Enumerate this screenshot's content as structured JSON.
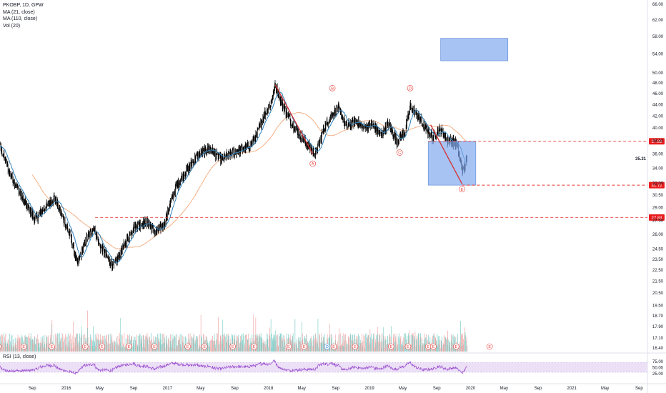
{
  "legend": {
    "symbol": "PKOBP, 1D, GPW",
    "ma21": "MA (21, close)",
    "ma110": "MA (110, close)",
    "vol": "Vol (20)"
  },
  "rsi_label": "RSI (13, close)",
  "colors": {
    "price_bars": "#000000",
    "ma21": "#2e7fb8",
    "ma110": "#f4a97c",
    "wave_line": "#d32f2f",
    "dashed_level": "#e53935",
    "box_fill": "#7ea7ee",
    "vol_up": "#7fcfc9",
    "vol_down": "#f1a8a8",
    "rsi_line": "#9b4fcf",
    "rsi_band": "#ece0f7",
    "marker": "#e53935",
    "marker_dividend": "#2e86de",
    "level_tag": "#e81c1c"
  },
  "chart_data": {
    "type": "ohlc",
    "price_axis": {
      "ticks": [
        "66.00",
        "62.00",
        "58.00",
        "54.00",
        "50.00",
        "48.00",
        "46.00",
        "44.00",
        "42.00",
        "40.00",
        "38.00",
        "36.00",
        "34.00",
        "32.00",
        "30.50",
        "29.00",
        "27.50",
        "26.00",
        "24.50",
        "23.50",
        "22.50",
        "21.50",
        "20.50",
        "19.50",
        "18.70",
        "17.90",
        "17.10",
        "16.40"
      ],
      "tick_values": [
        66,
        62,
        58,
        54,
        50,
        48,
        46,
        44,
        42,
        40,
        38,
        36,
        34,
        32,
        30.5,
        29,
        27.5,
        26,
        24.5,
        23.5,
        22.5,
        21.5,
        20.5,
        19.5,
        18.7,
        17.9,
        17.1,
        16.4
      ],
      "scale": "log"
    },
    "time_axis": {
      "labels": [
        "May",
        "Sep",
        "2016",
        "May",
        "Sep",
        "2017",
        "May",
        "Sep",
        "2018",
        "May",
        "Sep",
        "2019",
        "May",
        "Sep",
        "2020",
        "May",
        "Sep",
        "2021",
        "May",
        "Sep"
      ],
      "dates": [
        "2015-05",
        "2015-09",
        "2016-01",
        "2016-05",
        "2016-09",
        "2017-01",
        "2017-05",
        "2017-09",
        "2018-01",
        "2018-05",
        "2018-09",
        "2019-01",
        "2019-05",
        "2019-09",
        "2020-01",
        "2020-05",
        "2020-09",
        "2021-01",
        "2021-05",
        "2021-09"
      ]
    },
    "price_path": [
      [
        "2015-04-01",
        35.5
      ],
      [
        "2015-05-01",
        37.6
      ],
      [
        "2015-06-15",
        33.0
      ],
      [
        "2015-08-01",
        29.8
      ],
      [
        "2015-09-10",
        27.6
      ],
      [
        "2015-10-20",
        29.0
      ],
      [
        "2015-11-20",
        30.2
      ],
      [
        "2015-12-20",
        27.8
      ],
      [
        "2016-01-20",
        25.5
      ],
      [
        "2016-02-10",
        23.0
      ],
      [
        "2016-03-10",
        25.2
      ],
      [
        "2016-04-10",
        26.8
      ],
      [
        "2016-05-01",
        24.8
      ],
      [
        "2016-06-20",
        22.8
      ],
      [
        "2016-07-20",
        24.3
      ],
      [
        "2016-09-01",
        26.8
      ],
      [
        "2016-10-20",
        27.3
      ],
      [
        "2016-11-20",
        26.2
      ],
      [
        "2016-12-20",
        27.1
      ],
      [
        "2017-02-01",
        31.5
      ],
      [
        "2017-03-15",
        33.8
      ],
      [
        "2017-04-20",
        35.8
      ],
      [
        "2017-06-01",
        36.8
      ],
      [
        "2017-07-15",
        35.2
      ],
      [
        "2017-09-01",
        36.3
      ],
      [
        "2017-10-20",
        37.0
      ],
      [
        "2017-11-20",
        38.8
      ],
      [
        "2017-12-15",
        42.0
      ],
      [
        "2018-01-10",
        44.2
      ],
      [
        "2018-01-26",
        47.6
      ],
      [
        "2018-02-20",
        44.0
      ],
      [
        "2018-03-20",
        41.2
      ],
      [
        "2018-04-20",
        39.2
      ],
      [
        "2018-05-20",
        37.5
      ],
      [
        "2018-06-20",
        35.9
      ],
      [
        "2018-07-20",
        39.8
      ],
      [
        "2018-08-20",
        42.3
      ],
      [
        "2018-09-10",
        43.3
      ],
      [
        "2018-10-10",
        40.1
      ],
      [
        "2018-11-10",
        41.2
      ],
      [
        "2018-12-10",
        40.0
      ],
      [
        "2019-01-10",
        40.6
      ],
      [
        "2019-02-10",
        38.8
      ],
      [
        "2019-03-10",
        40.7
      ],
      [
        "2019-04-10",
        37.9
      ],
      [
        "2019-05-10",
        39.5
      ],
      [
        "2019-05-28",
        43.6
      ],
      [
        "2019-06-20",
        42.3
      ],
      [
        "2019-07-20",
        40.0
      ],
      [
        "2019-08-15",
        38.6
      ],
      [
        "2019-09-15",
        39.8
      ],
      [
        "2019-10-10",
        38.0
      ],
      [
        "2019-11-10",
        37.6
      ],
      [
        "2019-12-05",
        33.5
      ],
      [
        "2019-12-20",
        35.3
      ]
    ],
    "overlays": {
      "ma21": "MA (21, close)",
      "ma110": "MA (110, close)"
    },
    "annotations": {
      "wave_points": [
        {
          "label": "A",
          "date": "2018-06-10",
          "price": 34.6,
          "position": "below"
        },
        {
          "label": "B",
          "date": "2018-08-20",
          "price": 47.0,
          "position": "above"
        },
        {
          "label": "C",
          "date": "2019-04-20",
          "price": 36.2,
          "position": "below"
        },
        {
          "label": "D",
          "date": "2019-05-28",
          "price": 47.0,
          "position": "above"
        },
        {
          "label": "E",
          "date": "2019-12-01",
          "price": 31.2,
          "position": "below"
        }
      ],
      "wave_lines": [
        {
          "from": [
            "2018-01-26",
            47.6
          ],
          "to": [
            "2018-06-10",
            36.0
          ]
        },
        {
          "from": [
            "2019-08-10",
            40.5
          ],
          "to": [
            "2019-12-01",
            31.9
          ]
        }
      ],
      "boxes": [
        {
          "from_date": "2019-08-01",
          "to_date": "2020-01-20",
          "top": 37.89,
          "bottom": 31.72
        },
        {
          "from_date": "2019-09-15",
          "to_date": "2020-05-15",
          "top": 57.5,
          "bottom": 52.5
        }
      ],
      "levels": [
        {
          "value": 37.89,
          "label": "37.89",
          "from_date": "2019-08-01"
        },
        {
          "value": 31.72,
          "label": "31.72",
          "from_date": "2019-12-01"
        },
        {
          "value": 27.83,
          "label": "27.83",
          "from_date": "2016-04-15"
        }
      ],
      "current_price": "35.31",
      "current_value": 35.31
    },
    "earnings_markers": [
      {
        "date": "2015-05-01",
        "label": "E"
      },
      {
        "date": "2015-08-01",
        "label": "E"
      },
      {
        "date": "2015-11-10",
        "label": "E"
      },
      {
        "date": "2016-03-10",
        "label": "E"
      },
      {
        "date": "2016-05-10",
        "label": "E"
      },
      {
        "date": "2016-08-15",
        "label": "E"
      },
      {
        "date": "2016-11-15",
        "label": "E"
      },
      {
        "date": "2017-03-15",
        "label": "E"
      },
      {
        "date": "2017-05-15",
        "label": "E"
      },
      {
        "date": "2017-08-25",
        "label": "E"
      },
      {
        "date": "2017-11-10",
        "label": "E"
      },
      {
        "date": "2018-03-15",
        "label": "E"
      },
      {
        "date": "2018-05-10",
        "label": "E"
      },
      {
        "date": "2018-08-01",
        "label": "D"
      },
      {
        "date": "2018-08-25",
        "label": "E"
      },
      {
        "date": "2018-11-10",
        "label": "E"
      },
      {
        "date": "2019-03-20",
        "label": "E"
      },
      {
        "date": "2019-05-20",
        "label": "E"
      },
      {
        "date": "2019-08-01",
        "label": "E"
      },
      {
        "date": "2019-08-20",
        "label": "E"
      },
      {
        "date": "2019-11-10",
        "label": "E"
      },
      {
        "date": "2020-03-10",
        "label": "E"
      }
    ],
    "volume": {
      "name": "Vol (20)"
    },
    "rsi": {
      "name": "RSI (13, close)",
      "ticks": [
        "75.00",
        "50.00",
        "25.00"
      ],
      "tick_values": [
        75,
        50,
        25
      ],
      "band": [
        30,
        70
      ]
    }
  }
}
